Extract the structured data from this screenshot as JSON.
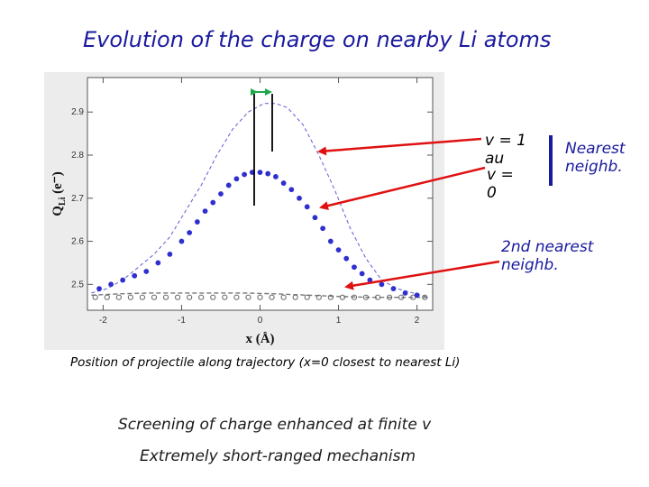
{
  "title": "Evolution of the charge on nearby Li atoms",
  "caption": "Position of projectile along trajectory (x=0 closest to nearest Li)",
  "notes": [
    "Screening of charge enhanced at finite v",
    "Extremely short-ranged mechanism"
  ],
  "annotations": {
    "v1": [
      "v = 1",
      "au"
    ],
    "v0": [
      "v =",
      "0"
    ],
    "nearest": [
      "Nearest",
      "neighb."
    ],
    "second": [
      "2nd nearest",
      "neighb."
    ]
  },
  "colors": {
    "series_blue": "#2f2fcf",
    "arrow_red": "#e01010",
    "double_arrow_green": "#1fa84a",
    "title_blue": "#1a1a9e"
  },
  "chart_data": {
    "type": "scatter",
    "xlabel": "x (Å)",
    "ylabel": "Q_Li (e⁻)",
    "ylabel_main": "Q",
    "ylabel_sub": "Li",
    "ylabel_unit": "(e⁻)",
    "xlim": [
      -2.2,
      2.2
    ],
    "ylim": [
      2.44,
      2.98
    ],
    "xticks": [
      -2,
      -1,
      0,
      1,
      2
    ],
    "yticks": [
      2.5,
      2.6,
      2.7,
      2.8,
      2.9
    ],
    "series": [
      {
        "style": "dashed-line",
        "x": [
          -2.15,
          -1.95,
          -1.75,
          -1.55,
          -1.35,
          -1.15,
          -0.95,
          -0.75,
          -0.55,
          -0.35,
          -0.15,
          0.05,
          0.2,
          0.35,
          0.55,
          0.75,
          0.95,
          1.15,
          1.35,
          1.55,
          1.75,
          1.95,
          2.15
        ],
        "y": [
          2.48,
          2.49,
          2.51,
          2.54,
          2.57,
          2.61,
          2.67,
          2.73,
          2.8,
          2.86,
          2.9,
          2.92,
          2.92,
          2.91,
          2.87,
          2.8,
          2.72,
          2.63,
          2.56,
          2.51,
          2.49,
          2.48,
          2.47
        ]
      },
      {
        "style": "filled-dots",
        "x": [
          -2.05,
          -1.9,
          -1.75,
          -1.6,
          -1.45,
          -1.3,
          -1.15,
          -1.0,
          -0.9,
          -0.8,
          -0.7,
          -0.6,
          -0.5,
          -0.4,
          -0.3,
          -0.2,
          -0.1,
          0.0,
          0.1,
          0.2,
          0.3,
          0.4,
          0.5,
          0.6,
          0.7,
          0.8,
          0.9,
          1.0,
          1.1,
          1.2,
          1.3,
          1.4,
          1.55,
          1.7,
          1.85,
          2.0
        ],
        "y": [
          2.49,
          2.5,
          2.51,
          2.52,
          2.53,
          2.55,
          2.57,
          2.6,
          2.62,
          2.645,
          2.67,
          2.69,
          2.71,
          2.73,
          2.745,
          2.755,
          2.76,
          2.76,
          2.757,
          2.75,
          2.735,
          2.72,
          2.7,
          2.68,
          2.655,
          2.63,
          2.6,
          2.58,
          2.56,
          2.54,
          2.525,
          2.51,
          2.5,
          2.49,
          2.48,
          2.475
        ]
      },
      {
        "style": "gray-dashed",
        "x": [
          -2.15,
          -1.8,
          -1.4,
          -1.0,
          -0.6,
          -0.2,
          0.2,
          0.6,
          1.0,
          1.4,
          1.8,
          2.15
        ],
        "y": [
          2.475,
          2.478,
          2.48,
          2.48,
          2.48,
          2.48,
          2.478,
          2.475,
          2.472,
          2.47,
          2.47,
          2.47
        ]
      },
      {
        "style": "open-circles",
        "x": [
          -2.1,
          -1.95,
          -1.8,
          -1.65,
          -1.5,
          -1.35,
          -1.2,
          -1.05,
          -0.9,
          -0.75,
          -0.6,
          -0.45,
          -0.3,
          -0.15,
          0.0,
          0.15,
          0.3,
          0.45,
          0.6,
          0.75,
          0.9,
          1.05,
          1.2,
          1.35,
          1.5,
          1.65,
          1.8,
          1.95,
          2.1
        ],
        "y": [
          2.47,
          2.47,
          2.47,
          2.47,
          2.47,
          2.47,
          2.47,
          2.47,
          2.47,
          2.47,
          2.47,
          2.47,
          2.47,
          2.47,
          2.47,
          2.47,
          2.47,
          2.47,
          2.47,
          2.47,
          2.47,
          2.47,
          2.47,
          2.47,
          2.47,
          2.47,
          2.47,
          2.47,
          2.47
        ]
      }
    ],
    "grid": false,
    "legend": "none"
  }
}
